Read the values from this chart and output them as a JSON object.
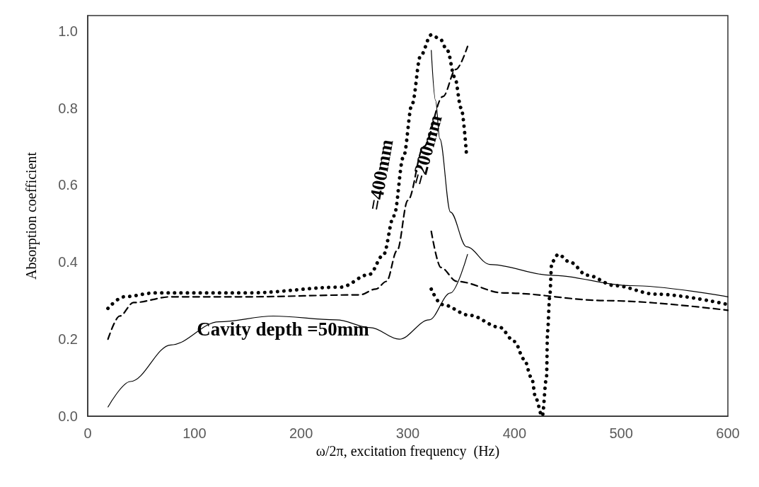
{
  "chart_data": {
    "type": "line",
    "xlabel": "ω/2π, excitation frequency  (Hz)",
    "ylabel": "Absorption coefficient",
    "xlim": [
      0,
      600
    ],
    "xticks": [
      0,
      100,
      200,
      300,
      400,
      500,
      600
    ],
    "ylim": [
      0,
      1.04
    ],
    "yticks": [
      {
        "value": 0,
        "label": "0.0"
      },
      0.2,
      0.4,
      0.6,
      0.8,
      {
        "value": 1,
        "label": "1.0"
      }
    ],
    "grid": false,
    "marker": "none",
    "series": [
      {
        "color": "#000000",
        "line_style": "solid",
        "x": [
          19,
          40,
          78,
          123,
          174,
          233,
          265,
          292,
          320,
          340,
          356
        ],
        "values": [
          0.024,
          0.09,
          0.185,
          0.245,
          0.26,
          0.25,
          0.23,
          0.2,
          0.25,
          0.32,
          0.42
        ]
      },
      {
        "color": "#000000",
        "line_style": "solid",
        "x": [
          322,
          326,
          330,
          340,
          355,
          377,
          434,
          509,
          600
        ],
        "values": [
          0.95,
          0.82,
          0.72,
          0.53,
          0.44,
          0.394,
          0.366,
          0.339,
          0.31
        ]
      },
      {
        "color": "#000000",
        "line_style": "dashed",
        "x": [
          19,
          30,
          43,
          78,
          150,
          255,
          270,
          280,
          290,
          300,
          315,
          333,
          345,
          356
        ],
        "values": [
          0.2,
          0.26,
          0.295,
          0.31,
          0.31,
          0.315,
          0.33,
          0.35,
          0.43,
          0.56,
          0.7,
          0.83,
          0.9,
          0.96
        ]
      },
      {
        "color": "#000000",
        "line_style": "dashed",
        "x": [
          322,
          331,
          346,
          390,
          487,
          600
        ],
        "values": [
          0.48,
          0.386,
          0.35,
          0.32,
          0.3,
          0.275
        ]
      },
      {
        "color": "#000000",
        "line_style": "dotted",
        "x": [
          19,
          34,
          63,
          150,
          237,
          264,
          277,
          287,
          296,
          304,
          312,
          322,
          330,
          337,
          344,
          350,
          355
        ],
        "values": [
          0.28,
          0.31,
          0.32,
          0.32,
          0.335,
          0.368,
          0.418,
          0.52,
          0.674,
          0.81,
          0.936,
          0.99,
          0.98,
          0.95,
          0.88,
          0.8,
          0.68
        ]
      },
      {
        "color": "#000000",
        "line_style": "dotted",
        "x": [
          322,
          332,
          358,
          386,
          400,
          409,
          416,
          420,
          426,
          430,
          431,
          433,
          435,
          441,
          452,
          468,
          494,
          532,
          600
        ],
        "values": [
          0.33,
          0.29,
          0.262,
          0.231,
          0.194,
          0.148,
          0.1,
          0.046,
          0,
          0.1,
          0.22,
          0.31,
          0.4,
          0.42,
          0.4,
          0.366,
          0.339,
          0.317,
          0.29
        ]
      }
    ],
    "annotations": [
      "Cavity depth =50mm",
      "=400mm",
      "=200mm"
    ]
  }
}
